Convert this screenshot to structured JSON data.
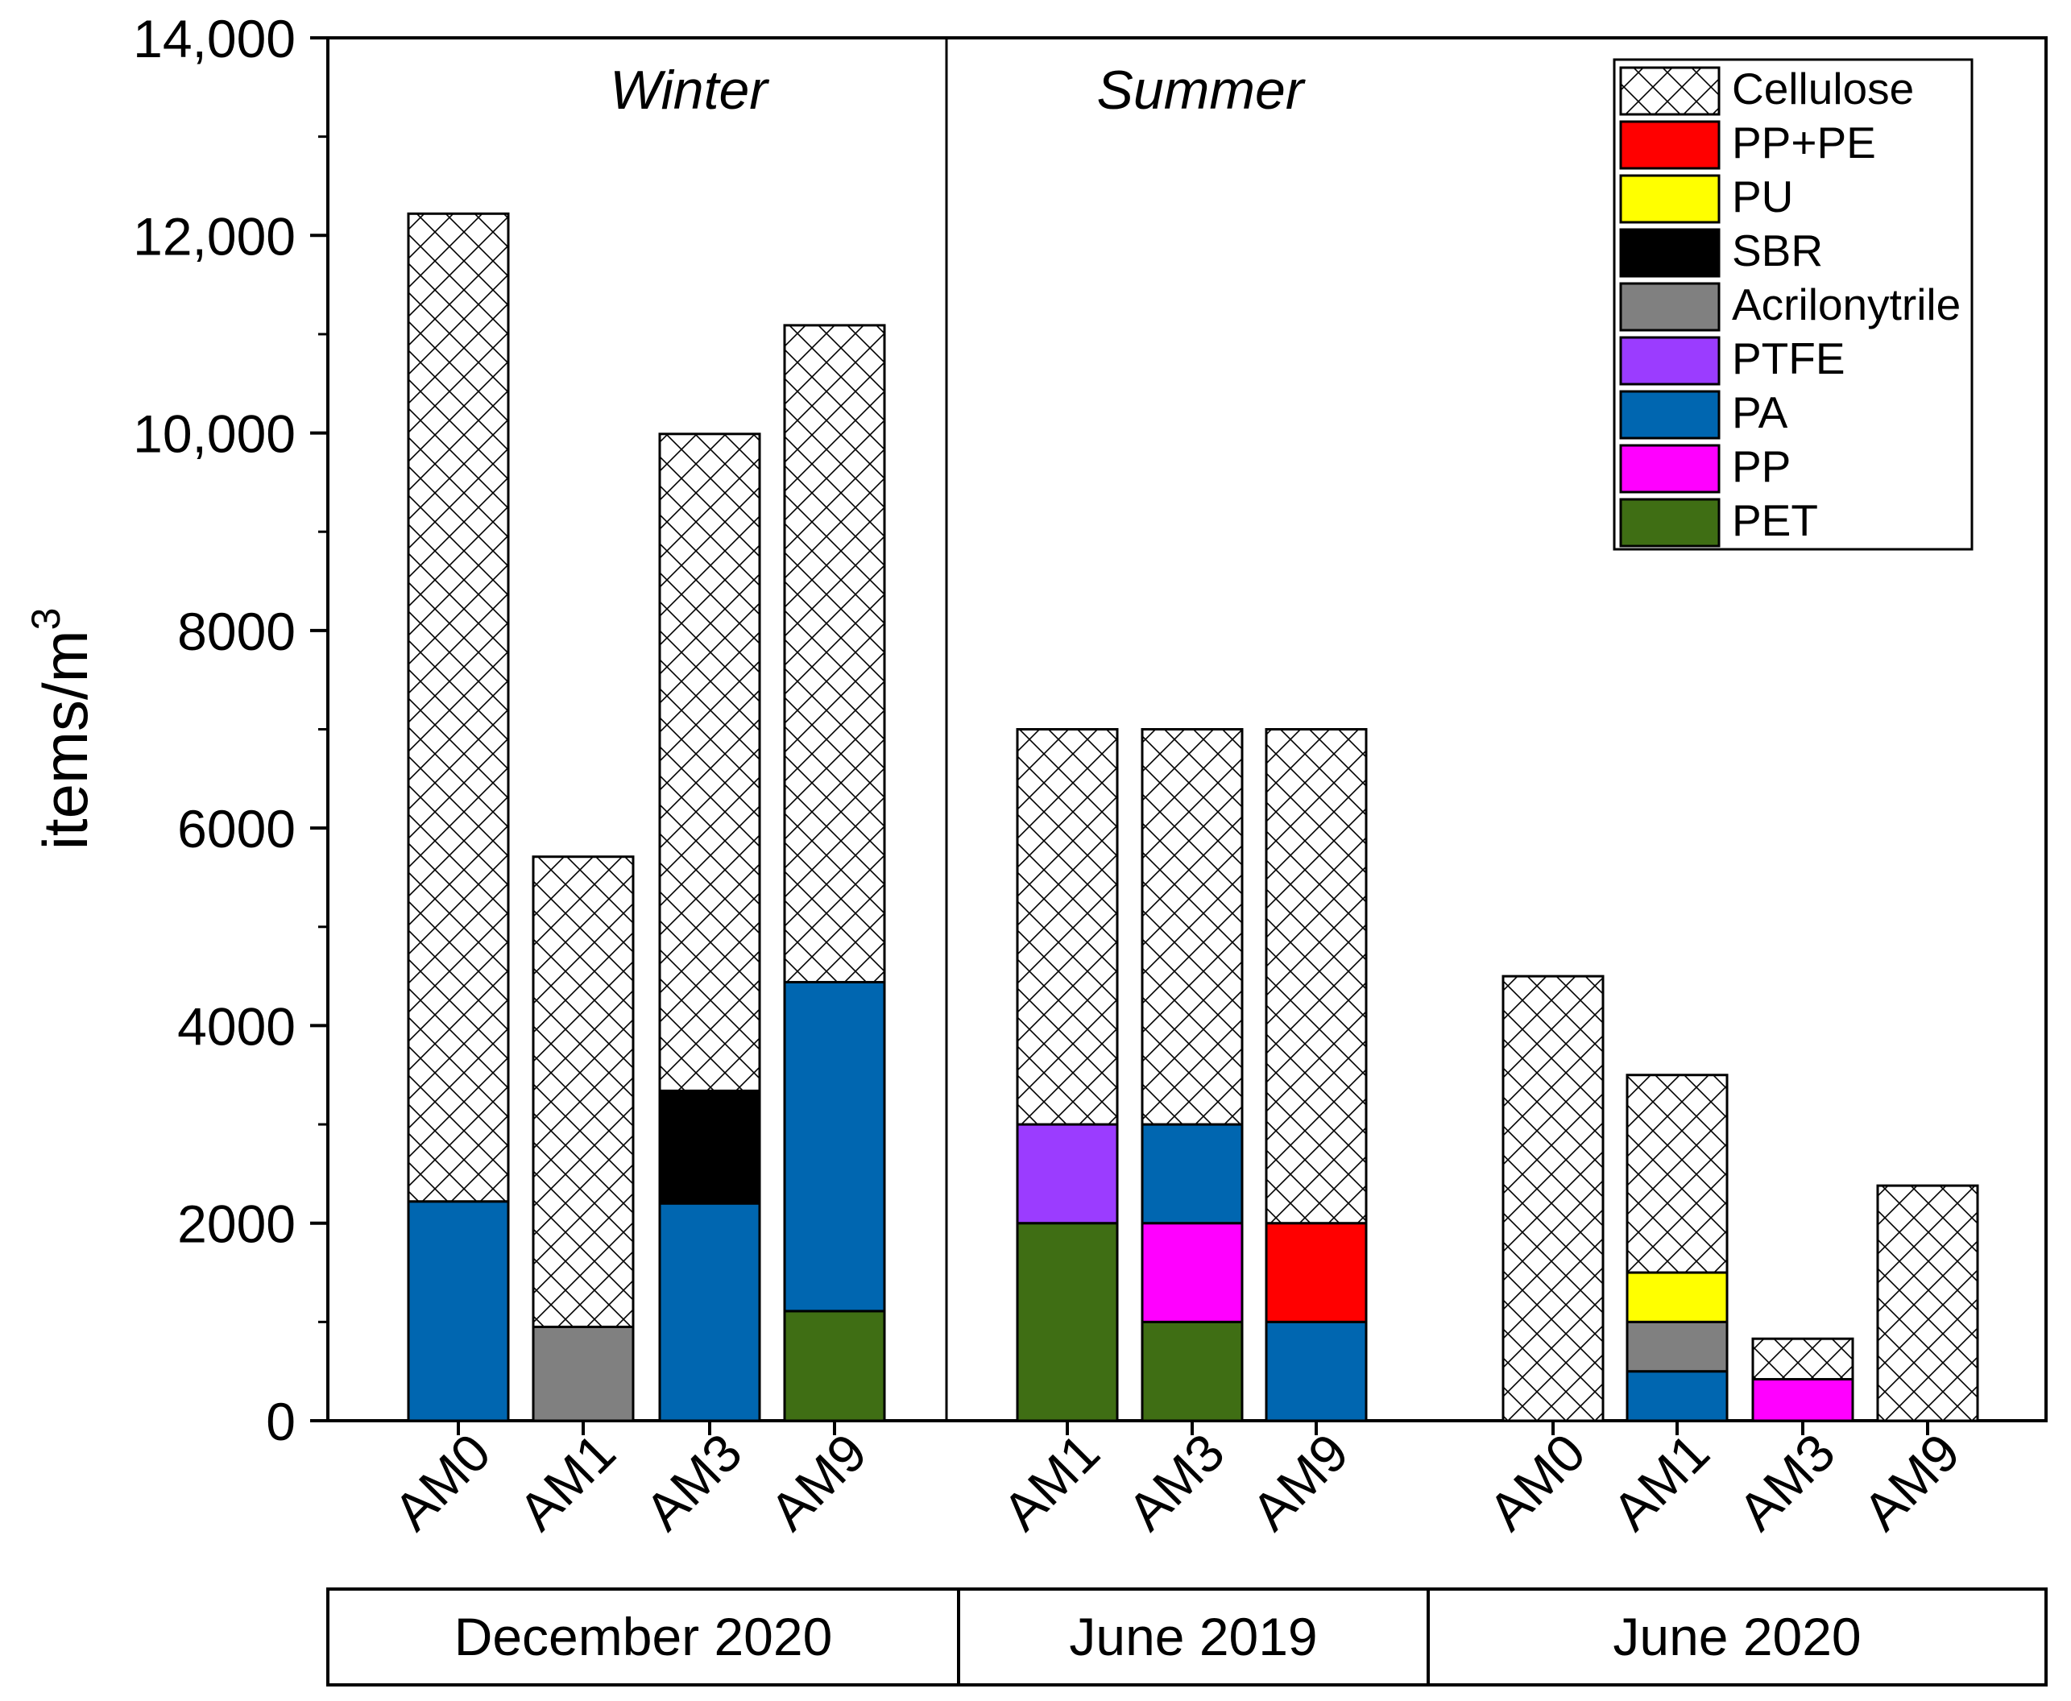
{
  "chart_data": {
    "type": "bar",
    "stacked": true,
    "ylabel": "items/m",
    "ylabel_superscript": "3",
    "ylim": [
      0,
      14000
    ],
    "y_ticks": [
      {
        "value": 0,
        "label": "0"
      },
      {
        "value": 2000,
        "label": "2000"
      },
      {
        "value": 4000,
        "label": "4000"
      },
      {
        "value": 6000,
        "label": "6000"
      },
      {
        "value": 8000,
        "label": "8000"
      },
      {
        "value": 10000,
        "label": "10,000"
      },
      {
        "value": 12000,
        "label": "12,000"
      },
      {
        "value": 14000,
        "label": "14,000"
      }
    ],
    "season_labels": [
      "Winter",
      "Summer"
    ],
    "groups": [
      {
        "label": "December 2020",
        "sites": [
          "AM0",
          "AM1",
          "AM3",
          "AM9"
        ]
      },
      {
        "label": "June 2019",
        "sites": [
          "AM1",
          "AM3",
          "AM9"
        ]
      },
      {
        "label": "June 2020",
        "sites": [
          "AM0",
          "AM1",
          "AM3",
          "AM9"
        ]
      }
    ],
    "legend": [
      {
        "name": "Cellulose",
        "color": "#ffffff",
        "pattern": "crosshatch"
      },
      {
        "name": "PP+PE",
        "color": "#ff0000"
      },
      {
        "name": "PU",
        "color": "#ffff00"
      },
      {
        "name": "SBR",
        "color": "#000000"
      },
      {
        "name": "Acrilonytrile",
        "color": "#808080"
      },
      {
        "name": "PTFE",
        "color": "#9b3cff"
      },
      {
        "name": "PA",
        "color": "#0066b0"
      },
      {
        "name": "PP",
        "color": "#ff00ff"
      },
      {
        "name": "PET",
        "color": "#3f6e14"
      }
    ],
    "bars": [
      {
        "group": "December 2020",
        "site": "AM0",
        "segments": [
          {
            "name": "PA",
            "value": 2220
          },
          {
            "name": "Cellulose",
            "value": 10000
          }
        ]
      },
      {
        "group": "December 2020",
        "site": "AM1",
        "segments": [
          {
            "name": "Acrilonytrile",
            "value": 950
          },
          {
            "name": "Cellulose",
            "value": 4760
          }
        ]
      },
      {
        "group": "December 2020",
        "site": "AM3",
        "segments": [
          {
            "name": "PA",
            "value": 2200
          },
          {
            "name": "SBR",
            "value": 1140
          },
          {
            "name": "Cellulose",
            "value": 6650
          }
        ]
      },
      {
        "group": "December 2020",
        "site": "AM9",
        "segments": [
          {
            "name": "PET",
            "value": 1110
          },
          {
            "name": "PA",
            "value": 3330
          },
          {
            "name": "Cellulose",
            "value": 6650
          }
        ]
      },
      {
        "group": "June 2019",
        "site": "AM1",
        "segments": [
          {
            "name": "PET",
            "value": 2000
          },
          {
            "name": "PTFE",
            "value": 1000
          },
          {
            "name": "Cellulose",
            "value": 4000
          }
        ]
      },
      {
        "group": "June 2019",
        "site": "AM3",
        "segments": [
          {
            "name": "PET",
            "value": 1000
          },
          {
            "name": "PP",
            "value": 1000
          },
          {
            "name": "PA",
            "value": 1000
          },
          {
            "name": "Cellulose",
            "value": 4000
          }
        ]
      },
      {
        "group": "June 2019",
        "site": "AM9",
        "segments": [
          {
            "name": "PA",
            "value": 1000
          },
          {
            "name": "PP+PE",
            "value": 1000
          },
          {
            "name": "Cellulose",
            "value": 5000
          }
        ]
      },
      {
        "group": "June 2020",
        "site": "AM0",
        "segments": [
          {
            "name": "Cellulose",
            "value": 4500
          }
        ]
      },
      {
        "group": "June 2020",
        "site": "AM1",
        "segments": [
          {
            "name": "PA",
            "value": 500
          },
          {
            "name": "Acrilonytrile",
            "value": 500
          },
          {
            "name": "PU",
            "value": 500
          },
          {
            "name": "Cellulose",
            "value": 2000
          }
        ]
      },
      {
        "group": "June 2020",
        "site": "AM3",
        "segments": [
          {
            "name": "PP",
            "value": 420
          },
          {
            "name": "Cellulose",
            "value": 410
          }
        ]
      },
      {
        "group": "June 2020",
        "site": "AM9",
        "segments": [
          {
            "name": "Cellulose",
            "value": 2380
          }
        ]
      }
    ]
  }
}
